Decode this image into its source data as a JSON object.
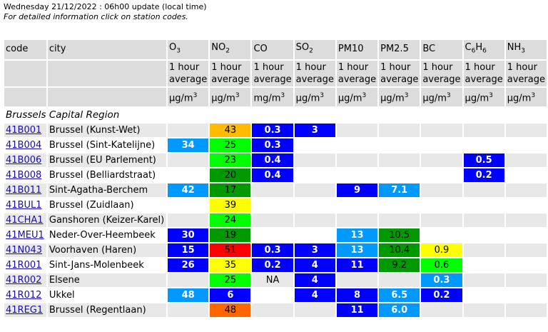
{
  "header": {
    "update": "Wednesday 21/12/2022 : 06h00 update (local time)",
    "instruction": "For detailed information click on station codes."
  },
  "columns": {
    "code": "code",
    "city": "city",
    "pollutants": [
      {
        "base": "O",
        "sub": "3",
        "avg": "1 hour average",
        "unit": "µg/m",
        "exp": "3"
      },
      {
        "base": "NO",
        "sub": "2",
        "avg": "1 hour average",
        "unit": "µg/m",
        "exp": "3"
      },
      {
        "base": "CO",
        "sub": "",
        "avg": "1 hour average",
        "unit": "mg/m",
        "exp": "3"
      },
      {
        "base": "SO",
        "sub": "2",
        "avg": "1 hour average",
        "unit": "µg/m",
        "exp": "3"
      },
      {
        "base": "PM10",
        "sub": "",
        "avg": "1 hour average",
        "unit": "µg/m",
        "exp": "3"
      },
      {
        "base": "PM2.5",
        "sub": "",
        "avg": "1 hour average",
        "unit": "µg/m",
        "exp": "3"
      },
      {
        "base": "BC",
        "sub": "",
        "avg": "1 hour average",
        "unit": "µg/m",
        "exp": "3"
      },
      {
        "base": "C",
        "sub": "6",
        "base2": "H",
        "sub2": "6",
        "avg": "1 hour average",
        "unit": "µg/m",
        "exp": "3"
      },
      {
        "base": "NH",
        "sub": "3",
        "avg": "1 hour average",
        "unit": "µg/m",
        "exp": "3"
      }
    ]
  },
  "region": "Brussels Capital Region",
  "level_colors": {
    "1": "#0000ff",
    "2": "#0099ff",
    "3": "#009900",
    "4": "#00ff00",
    "5": "#ffff00",
    "6": "#ffbb00",
    "7": "#ff6600",
    "8": "#ff0000",
    "9": "#990000",
    "10": "#660000"
  },
  "stations": [
    {
      "code": "41B001",
      "city": "Brussel (Kunst-Wet)",
      "values": [
        null,
        {
          "v": "43",
          "l": 6
        },
        {
          "v": "0.3",
          "l": 1
        },
        {
          "v": "3",
          "l": 1
        },
        null,
        null,
        null,
        null,
        null
      ]
    },
    {
      "code": "41B004",
      "city": "Brussel (Sint-Katelijne)",
      "values": [
        {
          "v": "34",
          "l": 2
        },
        {
          "v": "25",
          "l": 4
        },
        {
          "v": "0.3",
          "l": 1
        },
        null,
        null,
        null,
        null,
        null,
        null
      ]
    },
    {
      "code": "41B006",
      "city": "Brussel (EU Parlement)",
      "values": [
        null,
        {
          "v": "23",
          "l": 4
        },
        {
          "v": "0.4",
          "l": 1
        },
        null,
        null,
        null,
        null,
        {
          "v": "0.5",
          "l": 1
        },
        null
      ]
    },
    {
      "code": "41B008",
      "city": "Brussel (Belliardstraat)",
      "values": [
        null,
        {
          "v": "20",
          "l": 3
        },
        {
          "v": "0.4",
          "l": 1
        },
        null,
        null,
        null,
        null,
        {
          "v": "0.2",
          "l": 1
        },
        null
      ]
    },
    {
      "code": "41B011",
      "city": "Sint-Agatha-Berchem",
      "values": [
        {
          "v": "42",
          "l": 2
        },
        {
          "v": "17",
          "l": 3
        },
        null,
        null,
        {
          "v": "9",
          "l": 1
        },
        {
          "v": "7.1",
          "l": 2
        },
        null,
        null,
        null
      ]
    },
    {
      "code": "41BUL1",
      "city": "Brussel (Zuidlaan)",
      "values": [
        null,
        {
          "v": "39",
          "l": 5
        },
        null,
        null,
        null,
        null,
        null,
        null,
        null
      ]
    },
    {
      "code": "41CHA1",
      "city": "Ganshoren (Keizer-Karel)",
      "values": [
        null,
        {
          "v": "24",
          "l": 4
        },
        null,
        null,
        null,
        null,
        null,
        null,
        null
      ]
    },
    {
      "code": "41MEU1",
      "city": "Neder-Over-Heembeek",
      "values": [
        {
          "v": "30",
          "l": 1
        },
        {
          "v": "19",
          "l": 3
        },
        null,
        null,
        {
          "v": "13",
          "l": 2
        },
        {
          "v": "10.5",
          "l": 3
        },
        null,
        null,
        null
      ]
    },
    {
      "code": "41N043",
      "city": "Voorhaven (Haren)",
      "values": [
        {
          "v": "15",
          "l": 1
        },
        {
          "v": "51",
          "l": 8
        },
        {
          "v": "0.3",
          "l": 1
        },
        {
          "v": "3",
          "l": 1
        },
        {
          "v": "13",
          "l": 2
        },
        {
          "v": "10.4",
          "l": 3
        },
        {
          "v": "0.9",
          "l": 5
        },
        null,
        null
      ]
    },
    {
      "code": "41R001",
      "city": "Sint-Jans-Molenbeek",
      "values": [
        {
          "v": "26",
          "l": 1
        },
        {
          "v": "35",
          "l": 5
        },
        {
          "v": "0.2",
          "l": 1
        },
        {
          "v": "4",
          "l": 1
        },
        {
          "v": "11",
          "l": 1
        },
        {
          "v": "9.2",
          "l": 3
        },
        {
          "v": "0.6",
          "l": 4
        },
        null,
        null
      ]
    },
    {
      "code": "41R002",
      "city": "Elsene",
      "values": [
        null,
        {
          "v": "25",
          "l": 4
        },
        {
          "v": "NA",
          "l": 0
        },
        {
          "v": "4",
          "l": 1
        },
        null,
        null,
        {
          "v": "0.3",
          "l": 2
        },
        null,
        null
      ]
    },
    {
      "code": "41R012",
      "city": "Ukkel",
      "values": [
        {
          "v": "48",
          "l": 2
        },
        {
          "v": "6",
          "l": 1
        },
        null,
        {
          "v": "4",
          "l": 1
        },
        {
          "v": "8",
          "l": 1
        },
        {
          "v": "6.5",
          "l": 2
        },
        {
          "v": "0.2",
          "l": 1
        },
        null,
        null
      ]
    },
    {
      "code": "41REG1",
      "city": "Brussel (Regentlaan)",
      "values": [
        null,
        {
          "v": "48",
          "l": 7
        },
        null,
        null,
        {
          "v": "11",
          "l": 1
        },
        {
          "v": "6.0",
          "l": 2
        },
        null,
        null,
        null
      ]
    }
  ]
}
